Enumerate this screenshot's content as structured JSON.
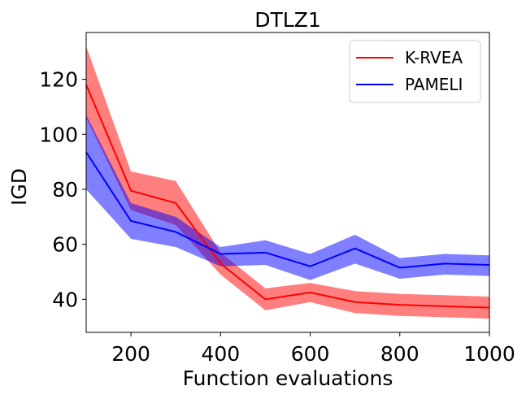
{
  "chart_data": {
    "type": "line",
    "title": "DTLZ1",
    "xlabel": "Function evaluations",
    "ylabel": "IGD",
    "xlim": [
      100,
      1000
    ],
    "ylim": [
      28,
      137
    ],
    "xticks": [
      200,
      400,
      600,
      800,
      1000
    ],
    "yticks": [
      40,
      60,
      80,
      100,
      120
    ],
    "x": [
      100,
      200,
      300,
      400,
      500,
      600,
      700,
      800,
      900,
      1000
    ],
    "grid": false,
    "legend_position": "top-right",
    "series": [
      {
        "name": "K-RVEA",
        "color": "#ff0000",
        "mean": [
          118,
          79.5,
          75,
          53,
          40,
          42.5,
          39,
          38,
          37.5,
          37
        ],
        "lower": [
          106,
          72.5,
          67,
          49,
          36,
          39,
          35,
          34,
          33.5,
          33
        ],
        "upper": [
          132,
          86.5,
          83,
          57,
          44,
          46,
          43,
          42,
          41.5,
          41
        ]
      },
      {
        "name": "PAMELI",
        "color": "#0000ff",
        "mean": [
          93.5,
          68.5,
          64.5,
          56.5,
          57,
          52,
          58.5,
          51.5,
          53,
          52.5
        ],
        "lower": [
          80,
          62,
          59,
          52,
          52.5,
          47,
          53,
          47.5,
          49,
          48.5
        ],
        "upper": [
          107,
          75,
          70,
          59,
          61.5,
          56.5,
          63.5,
          55,
          56.5,
          56
        ]
      }
    ]
  }
}
